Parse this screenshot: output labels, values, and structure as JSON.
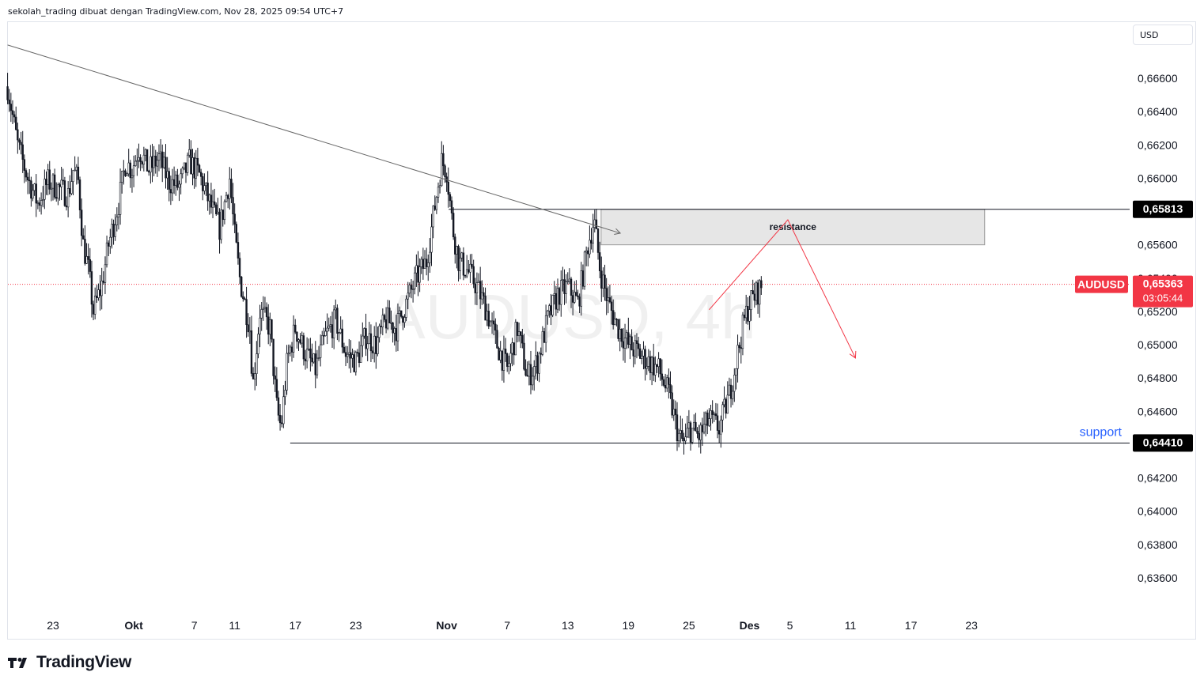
{
  "header": {
    "attribution": "sekolah_trading dibuat dengan TradingView.com, Nov 28, 2025 09:54 UTC+7"
  },
  "currency": "USD",
  "watermark": "AUDUSD, 4h",
  "brand": "TradingView",
  "chart_data": {
    "type": "candlestick",
    "symbol": "AUDUSD",
    "timeframe": "4h",
    "ylim": [
      0.634,
      0.6685
    ],
    "y_ticks": [
      "0,66600",
      "0,66400",
      "0,66200",
      "0,66000",
      "0,65600",
      "0,65400",
      "0,65200",
      "0,65000",
      "0,64800",
      "0,64600",
      "0,64200",
      "0,64000",
      "0,63800",
      "0,63600"
    ],
    "y_tick_values": [
      0.666,
      0.664,
      0.662,
      0.66,
      0.656,
      0.654,
      0.652,
      0.65,
      0.648,
      0.646,
      0.642,
      0.64,
      0.638,
      0.636
    ],
    "x_ticks": [
      {
        "label": "23",
        "day": 0
      },
      {
        "label": "Okt",
        "day": 8
      },
      {
        "label": "7",
        "day": 14
      },
      {
        "label": "11",
        "day": 18
      },
      {
        "label": "17",
        "day": 24
      },
      {
        "label": "23",
        "day": 30
      },
      {
        "label": "Nov",
        "day": 39
      },
      {
        "label": "7",
        "day": 45
      },
      {
        "label": "13",
        "day": 51
      },
      {
        "label": "19",
        "day": 57
      },
      {
        "label": "25",
        "day": 63
      },
      {
        "label": "Des",
        "day": 69
      },
      {
        "label": "5",
        "day": 73
      },
      {
        "label": "11",
        "day": 79
      },
      {
        "label": "17",
        "day": 85
      },
      {
        "label": "23",
        "day": 91
      }
    ],
    "close_path": [
      [
        -4.5,
        0.6655
      ],
      [
        -3.5,
        0.662
      ],
      [
        -2.5,
        0.66
      ],
      [
        -1.5,
        0.6585
      ],
      [
        -0.5,
        0.6598
      ],
      [
        1.5,
        0.659
      ],
      [
        2,
        0.6605
      ],
      [
        2.5,
        0.6598
      ],
      [
        3,
        0.656
      ],
      [
        3.5,
        0.6545
      ],
      [
        4,
        0.652
      ],
      [
        4.8,
        0.6535
      ],
      [
        5.5,
        0.656
      ],
      [
        6.5,
        0.6585
      ],
      [
        7.2,
        0.661
      ],
      [
        7.8,
        0.6605
      ],
      [
        8.5,
        0.6618
      ],
      [
        9.5,
        0.6605
      ],
      [
        10.5,
        0.6612
      ],
      [
        11.5,
        0.6598
      ],
      [
        12.5,
        0.6595
      ],
      [
        13.5,
        0.661
      ],
      [
        14.5,
        0.6602
      ],
      [
        15.5,
        0.6585
      ],
      [
        16.5,
        0.657
      ],
      [
        17.5,
        0.66
      ],
      [
        18,
        0.6565
      ],
      [
        18.5,
        0.654
      ],
      [
        19.5,
        0.651
      ],
      [
        19.8,
        0.6475
      ],
      [
        20.5,
        0.652
      ],
      [
        21.5,
        0.651
      ],
      [
        22.2,
        0.646
      ],
      [
        22.6,
        0.645
      ],
      [
        23.2,
        0.649
      ],
      [
        24,
        0.651
      ],
      [
        25,
        0.6495
      ],
      [
        26,
        0.6485
      ],
      [
        27,
        0.6505
      ],
      [
        28,
        0.6515
      ],
      [
        29,
        0.6495
      ],
      [
        30,
        0.649
      ],
      [
        31,
        0.6505
      ],
      [
        32,
        0.65
      ],
      [
        33,
        0.6515
      ],
      [
        34,
        0.651
      ],
      [
        35,
        0.6525
      ],
      [
        36,
        0.654
      ],
      [
        37,
        0.655
      ],
      [
        38,
        0.659
      ],
      [
        38.5,
        0.661
      ],
      [
        39,
        0.6605
      ],
      [
        39.6,
        0.657
      ],
      [
        40.2,
        0.655
      ],
      [
        41,
        0.6545
      ],
      [
        42,
        0.6535
      ],
      [
        43,
        0.652
      ],
      [
        44,
        0.65
      ],
      [
        45,
        0.6485
      ],
      [
        46,
        0.651
      ],
      [
        47,
        0.648
      ],
      [
        48,
        0.649
      ],
      [
        49,
        0.6515
      ],
      [
        50,
        0.653
      ],
      [
        51,
        0.6535
      ],
      [
        52,
        0.6525
      ],
      [
        53,
        0.656
      ],
      [
        53.6,
        0.6575
      ],
      [
        54.2,
        0.6545
      ],
      [
        55,
        0.6525
      ],
      [
        56,
        0.651
      ],
      [
        57,
        0.65
      ],
      [
        58,
        0.6495
      ],
      [
        59,
        0.649
      ],
      [
        60,
        0.6485
      ],
      [
        61,
        0.647
      ],
      [
        62,
        0.6445
      ],
      [
        62.6,
        0.644
      ],
      [
        63,
        0.645
      ],
      [
        64,
        0.6445
      ],
      [
        65,
        0.6455
      ],
      [
        66,
        0.645
      ],
      [
        67,
        0.647
      ],
      [
        68,
        0.65
      ],
      [
        68.5,
        0.6515
      ],
      [
        69,
        0.6525
      ],
      [
        69.6,
        0.653
      ],
      [
        70.3,
        0.6536
      ]
    ],
    "trendline": {
      "x1": -4.5,
      "y1": 0.668,
      "x2": 56.2,
      "y2": 0.6567
    },
    "resistance_zone": {
      "label": "resistance",
      "x_start": 54.3,
      "x_end": 92.3,
      "y_top": 0.65813,
      "y_bottom": 0.656
    },
    "resistance_line": {
      "price": 0.65813,
      "x_start": 39.2,
      "label": "0,65813"
    },
    "support_line": {
      "price": 0.6441,
      "x_start": 23.5,
      "label": "0,64410",
      "text": "support"
    },
    "projection": [
      [
        65,
        0.6521
      ],
      [
        72.8,
        0.6575
      ],
      [
        79.5,
        0.6492
      ]
    ],
    "last_price": {
      "symbol": "AUDUSD",
      "price": 0.65363,
      "label": "0,65363",
      "countdown": "03:05:44"
    },
    "colors": {
      "candle": "#131722",
      "trendline": "#666666",
      "projection": "#f23645",
      "support_text": "#2962ff",
      "last_price_bg": "#f23645",
      "zone_fill": "#e6e6e6"
    }
  }
}
